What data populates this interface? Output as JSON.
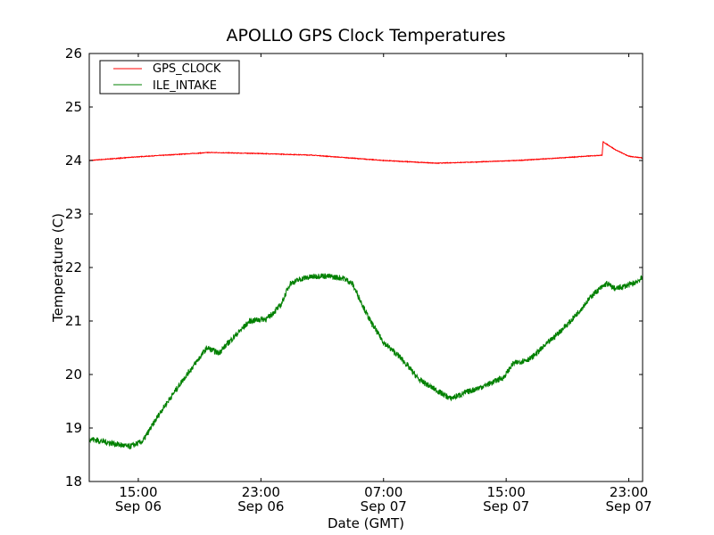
{
  "chart_data": {
    "type": "line",
    "title": "APOLLO GPS Clock Temperatures",
    "xlabel": "Date (GMT)",
    "ylabel": "Temperature (C)",
    "x_units": "hours since Sep 06 00:00 GMT",
    "xlim": [
      11.8,
      47.9
    ],
    "ylim": [
      18,
      26
    ],
    "yticks": [
      18,
      19,
      20,
      21,
      22,
      23,
      24,
      25,
      26
    ],
    "xticks": [
      {
        "value": 15,
        "time": "15:00",
        "date": "Sep 06"
      },
      {
        "value": 23,
        "time": "23:00",
        "date": "Sep 06"
      },
      {
        "value": 31,
        "time": "07:00",
        "date": "Sep 07"
      },
      {
        "value": 39,
        "time": "15:00",
        "date": "Sep 07"
      },
      {
        "value": 47,
        "time": "23:00",
        "date": "Sep 07"
      }
    ],
    "grid": false,
    "legend_position": "top-left",
    "series": [
      {
        "name": "GPS_CLOCK",
        "color": "#ff0000",
        "x": [
          11.8,
          15.0,
          19.65,
          23.0,
          26.35,
          31.0,
          34.5,
          36.83,
          39.73,
          42.64,
          45.26,
          45.32,
          46.13,
          47.0,
          47.87
        ],
        "y": [
          24.0,
          24.07,
          24.15,
          24.13,
          24.1,
          24.0,
          23.95,
          23.97,
          24.0,
          24.05,
          24.1,
          24.35,
          24.2,
          24.08,
          24.05
        ]
      },
      {
        "name": "ILE_INTAKE",
        "color": "#008000",
        "x": [
          11.8,
          13.55,
          14.42,
          15.29,
          16.45,
          17.91,
          19.48,
          20.24,
          21.23,
          22.27,
          23.44,
          24.31,
          24.89,
          25.76,
          26.93,
          28.38,
          28.96,
          30.13,
          31.0,
          32.16,
          33.33,
          34.49,
          35.36,
          36.24,
          37.69,
          38.85,
          39.44,
          40.6,
          41.76,
          43.22,
          44.67,
          45.55,
          46.13,
          47.29,
          47.87
        ],
        "y": [
          18.8,
          18.7,
          18.65,
          18.75,
          19.3,
          19.9,
          20.5,
          20.4,
          20.7,
          21.0,
          21.05,
          21.3,
          21.7,
          21.8,
          21.85,
          21.8,
          21.7,
          21.0,
          20.6,
          20.3,
          19.9,
          19.7,
          19.55,
          19.65,
          19.8,
          19.95,
          20.2,
          20.3,
          20.6,
          21.0,
          21.5,
          21.7,
          21.6,
          21.7,
          21.8
        ]
      }
    ]
  }
}
